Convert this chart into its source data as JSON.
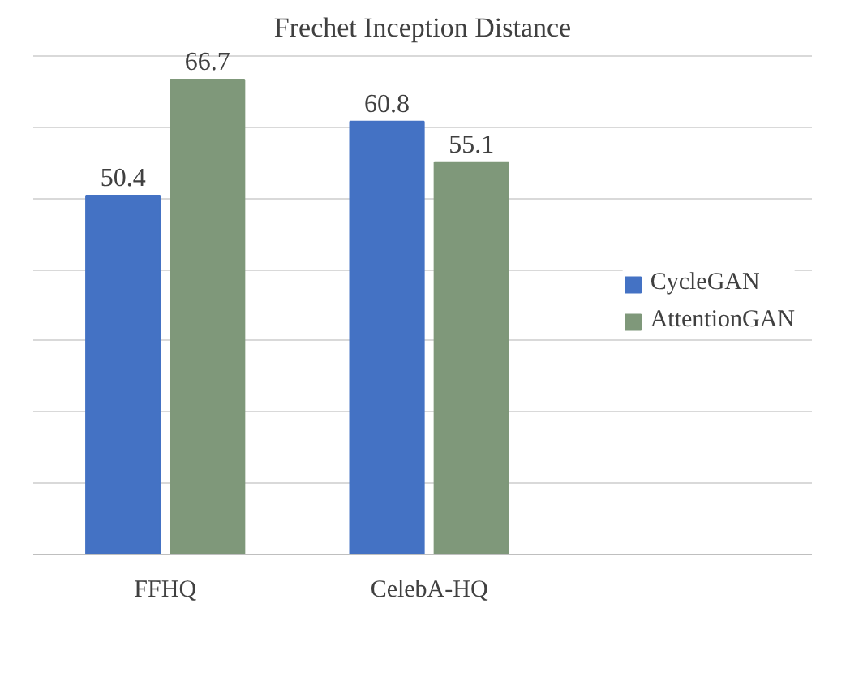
{
  "chart_data": {
    "type": "bar",
    "title": "Frechet Inception Distance",
    "categories": [
      "FFHQ",
      "CelebA-HQ"
    ],
    "series": [
      {
        "name": "CycleGAN",
        "color": "#4472c4",
        "values": [
          50.4,
          60.8
        ]
      },
      {
        "name": "AttentionGAN",
        "color": "#7f987a",
        "values": [
          66.7,
          55.1
        ]
      }
    ],
    "tick_labels": "x",
    "grid": "y",
    "legend": "right",
    "data_labels": true
  }
}
